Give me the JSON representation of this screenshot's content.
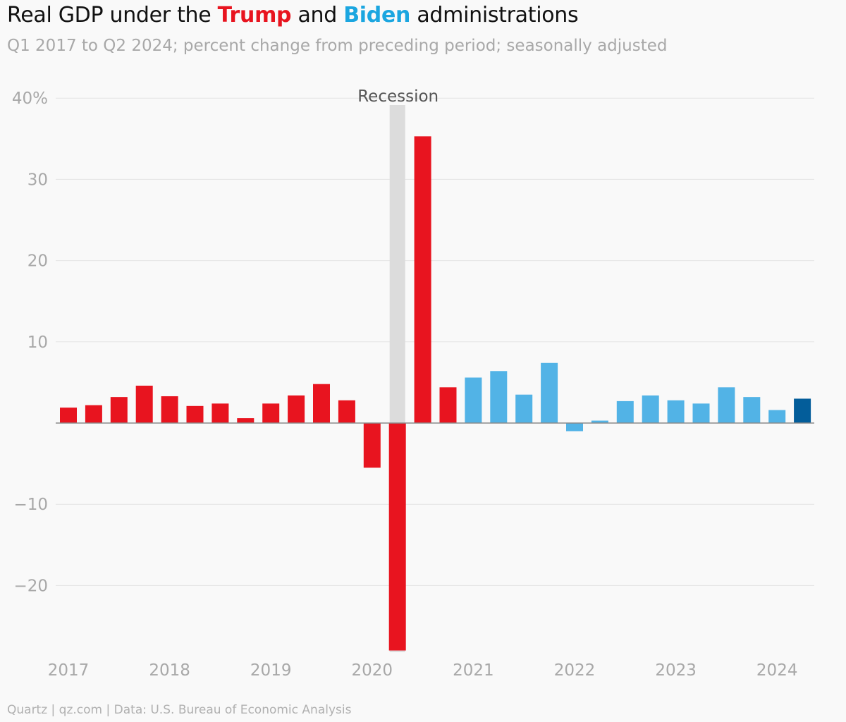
{
  "chart_data": {
    "type": "bar",
    "title_parts": {
      "prefix": "Real GDP under the ",
      "trump": "Trump",
      "middle": " and ",
      "biden": "Biden",
      "suffix": " administrations"
    },
    "subtitle": "Q1 2017 to Q2 2024; percent change from preceding period; seasonally adjusted",
    "footer": "Quartz | qz.com | Data: U.S. Bureau of Economic Analysis",
    "y_ticks": [
      {
        "value": 40,
        "label": "40%"
      },
      {
        "value": 30,
        "label": "30"
      },
      {
        "value": 20,
        "label": "20"
      },
      {
        "value": 10,
        "label": "10"
      },
      {
        "value": -10,
        "label": "−10"
      },
      {
        "value": -20,
        "label": "−20"
      }
    ],
    "ylim": [
      -28.2,
      40
    ],
    "x_year_labels": [
      "2017",
      "2018",
      "2019",
      "2020",
      "2021",
      "2022",
      "2023",
      "2024"
    ],
    "recession": {
      "label": "Recession",
      "quarter_index": 13
    },
    "colors": {
      "trump": "#e8141f",
      "biden": "#52b3e6",
      "latest": "#035d9a",
      "recession": "#dcdcdc"
    },
    "grid": true,
    "series": [
      {
        "party": "trump",
        "values": [
          1.9,
          2.2,
          3.2,
          4.6,
          3.3,
          2.1,
          2.4,
          0.6,
          2.4,
          3.4,
          4.8,
          2.8,
          -5.5,
          -28.0,
          35.3,
          4.4
        ]
      },
      {
        "party": "biden",
        "values": [
          5.6,
          6.4,
          3.5,
          7.4,
          -1.0,
          0.3,
          2.7,
          3.4,
          2.8,
          2.4,
          4.4,
          3.2,
          1.6,
          3.0
        ]
      }
    ]
  }
}
